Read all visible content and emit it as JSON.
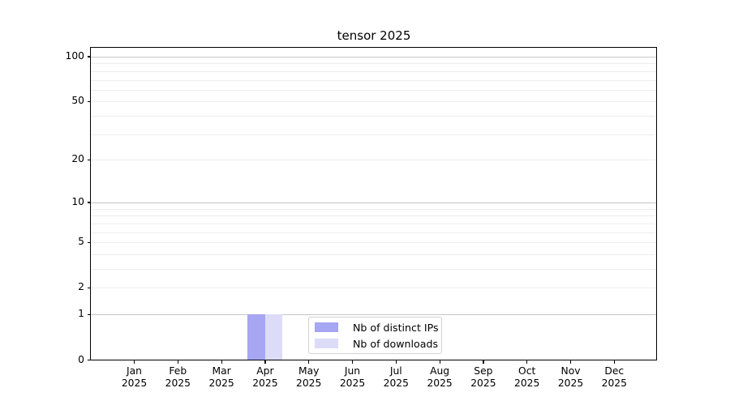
{
  "chart_data": {
    "type": "bar",
    "title": "tensor 2025",
    "x": [
      "Jan\n2025",
      "Feb\n2025",
      "Mar\n2025",
      "Apr\n2025",
      "May\n2025",
      "Jun\n2025",
      "Jul\n2025",
      "Aug\n2025",
      "Sep\n2025",
      "Oct\n2025",
      "Nov\n2025",
      "Dec\n2025"
    ],
    "series": [
      {
        "name": "Nb of distinct IPs",
        "color": "#a6a6f2",
        "values": [
          0,
          0,
          0,
          1,
          0,
          0,
          0,
          0,
          0,
          0,
          0,
          0
        ]
      },
      {
        "name": "Nb of downloads",
        "color": "#dcdcf9",
        "values": [
          0,
          0,
          0,
          1,
          0,
          0,
          0,
          0,
          0,
          0,
          0,
          0
        ]
      }
    ],
    "y_scale": "log10(value+1)",
    "y_ticks": [
      0,
      1,
      2,
      5,
      10,
      20,
      50,
      100
    ],
    "y_major_gridlines": [
      1,
      10,
      100
    ],
    "y_minor_gridlines": [
      2,
      3,
      4,
      5,
      6,
      7,
      8,
      9,
      20,
      30,
      40,
      50,
      60,
      70,
      80,
      90
    ],
    "ylim": [
      0,
      117
    ],
    "grid": true,
    "legend_position": "lower center",
    "colors": {
      "major_grid": "#c6c6c6",
      "minor_grid": "#ededed",
      "spine": "#000000",
      "tick_label": "#000000"
    }
  }
}
